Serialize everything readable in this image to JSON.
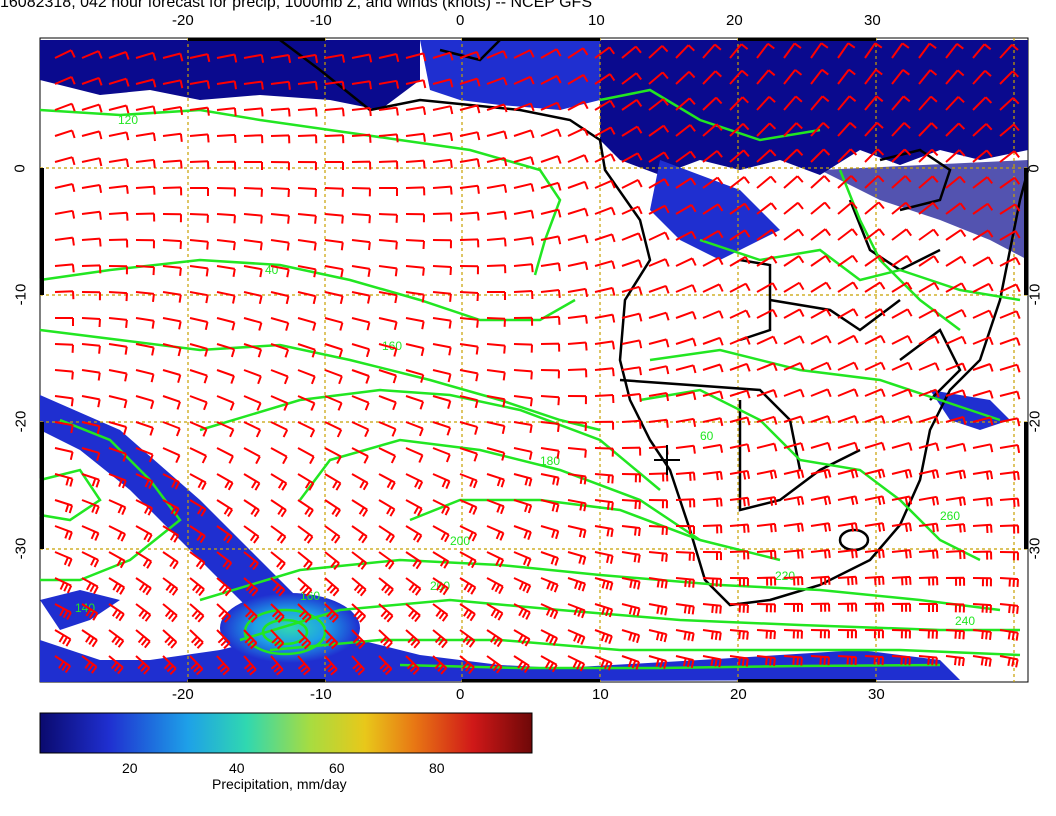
{
  "title": "16082318, 042 hour forecast for precip, 1000mb Z, and winds (knots) -- NCEP GFS",
  "axes": {
    "lon_ticks": [
      "-20",
      "-10",
      "0",
      "10",
      "20",
      "30"
    ],
    "lat_ticks": [
      "0",
      "-10",
      "-20",
      "-30"
    ]
  },
  "contour_labels": [
    "120",
    "140",
    "160",
    "180",
    "200",
    "220",
    "240",
    "260",
    "60",
    "40",
    "160",
    "200"
  ],
  "colorbar": {
    "ticks": [
      "20",
      "40",
      "60",
      "80"
    ],
    "label": "Precipitation, mm/day",
    "colors": [
      "#0a0a6e",
      "#1f2fd0",
      "#1ea0e8",
      "#30d8b0",
      "#a8dc40",
      "#e8c81a",
      "#e87814",
      "#d01818",
      "#6e0808"
    ]
  },
  "colors": {
    "wind_barb": "#ff0000",
    "height_contour": "#22e622",
    "coastline": "#000000",
    "grid": "#c8a000"
  }
}
